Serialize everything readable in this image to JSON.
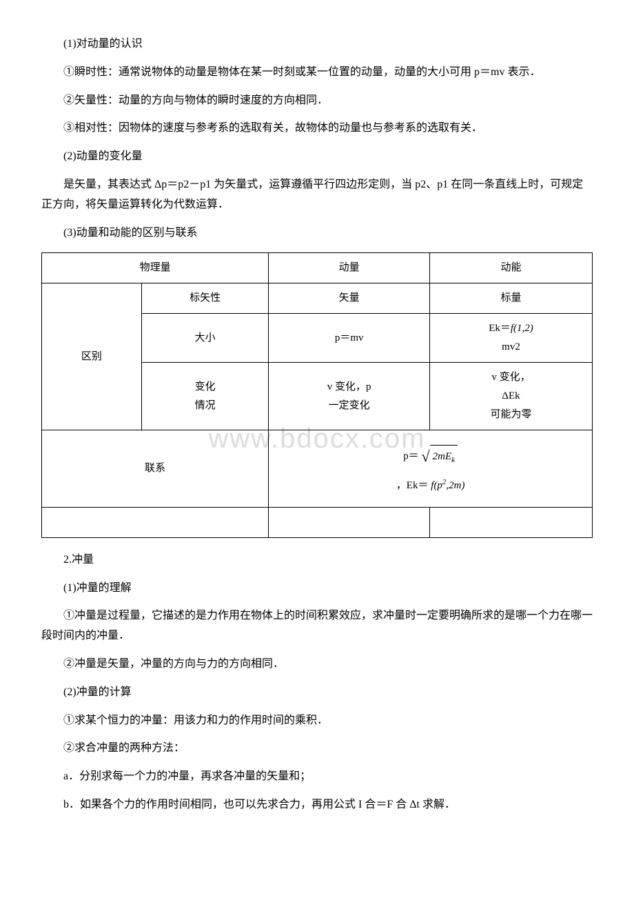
{
  "para1": "(1)对动量的认识",
  "para2": "①瞬时性：通常说物体的动量是物体在某一时刻或某一位置的动量，动量的大小可用 p＝mv 表示．",
  "para3": "②矢量性：动量的方向与物体的瞬时速度的方向相同．",
  "para4": "③相对性：因物体的速度与参考系的选取有关，故物体的动量也与参考系的选取有关．",
  "para5": "(2)动量的变化量",
  "para6": "是矢量，其表达式 Δp＝p2－p1 为矢量式，运算遵循平行四边形定则，当 p2、p1 在同一条直线上时，可规定正方向，将矢量运算转化为代数运算．",
  "para7": "(3)动量和动能的区别与联系",
  "table": {
    "r1c1": "物理量",
    "r1c2": "动量",
    "r1c3": "动能",
    "r2c1": "区别",
    "r2c2": "标矢性",
    "r2c3": "矢量",
    "r2c4": "标量",
    "r3c2": "大小",
    "r3c3": "p＝mv",
    "r3c4_a": "Ek＝",
    "r3c4_b": "f(1,2)",
    "r3c4_c": "mv2",
    "r4c2_a": "变化",
    "r4c2_b": "情况",
    "r4c3_a": "v 变化，p",
    "r4c3_b": "一定变化",
    "r4c4_a": "v 变化，",
    "r4c4_b": "ΔEk",
    "r4c4_c": "可能为零",
    "r5c1": "联系",
    "r5c2_a": "p＝",
    "r5c2_b": "2mE",
    "r5c2_k": "k",
    "r5c3_a": "，Ek＝",
    "r5c3_b": "f(p",
    "r5c3_sup": "2",
    "r5c3_c": ",2m)"
  },
  "para8": "2.冲量",
  "para9": "(1)冲量的理解",
  "para10": "①冲量是过程量，它描述的是力作用在物体上的时间积累效应，求冲量时一定要明确所求的是哪一个力在哪一段时间内的冲量．",
  "para11": "②冲量是矢量，冲量的方向与力的方向相同．",
  "para12": "(2)冲量的计算",
  "para13": "①求某个恒力的冲量：用该力和力的作用时间的乘积．",
  "para14": "②求合冲量的两种方法：",
  "para15": "a．分别求每一个力的冲量，再求各冲量的矢量和；",
  "para16": "b．如果各个力的作用时间相同，也可以先求合力，再用公式 I 合＝F 合 Δt 求解．",
  "watermark": "www.bdocx.com"
}
